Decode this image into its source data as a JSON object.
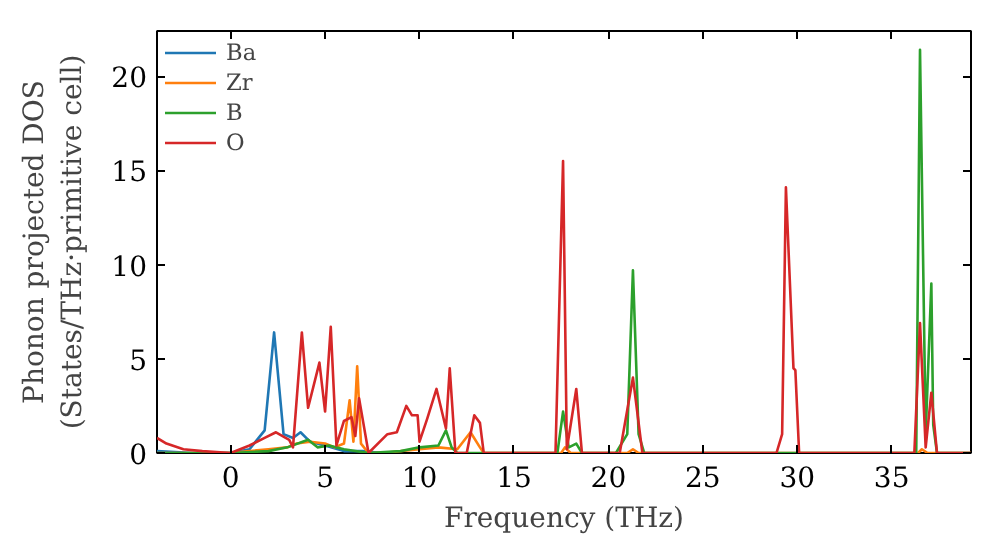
{
  "chart_data": {
    "type": "line",
    "xlabel": "Frequency (THz)",
    "ylabel": "Phonon projected DOS\n(States/THz·primitive cell)",
    "xlim": [
      -3.9,
      39.2
    ],
    "ylim": [
      0,
      22.4
    ],
    "xticks": [
      0,
      5,
      10,
      15,
      20,
      25,
      30,
      35
    ],
    "yticks": [
      0,
      5,
      10,
      15,
      20
    ],
    "grid": false,
    "legend": "top left",
    "series": [
      {
        "name": "Ba",
        "color": "#1f77b4",
        "x": [
          -3.9,
          -2,
          0,
          1,
          1.8,
          2.3,
          2.8,
          3.3,
          3.7,
          4.2,
          5,
          6,
          7,
          8
        ],
        "values": [
          0.1,
          0,
          0,
          0.2,
          1.2,
          6.4,
          1.0,
          0.8,
          1.1,
          0.6,
          0.4,
          0.1,
          0.1,
          0
        ]
      },
      {
        "name": "Zr",
        "color": "#ff7f0e",
        "x": [
          -3.9,
          0,
          1,
          2,
          3,
          3.5,
          4.2,
          5,
          5.5,
          6.0,
          6.3,
          6.5,
          6.7,
          6.9,
          7.3,
          8,
          10,
          11,
          12,
          12.7,
          13.2,
          13.4,
          17.5,
          17.7,
          18,
          21,
          21.3,
          21.6,
          36.4,
          36.6,
          36.9,
          39.2
        ],
        "values": [
          0,
          0,
          0.1,
          0.2,
          0.3,
          0.5,
          0.6,
          0.5,
          0.3,
          0.5,
          2.8,
          0.6,
          4.6,
          0.5,
          0,
          0,
          0.2,
          0.3,
          0.2,
          1.1,
          0.3,
          0,
          0,
          0.3,
          0,
          0,
          0.2,
          0,
          0,
          0.2,
          0,
          0
        ]
      },
      {
        "name": "B",
        "color": "#2ca02c",
        "x": [
          -3.9,
          0,
          2,
          3,
          4.1,
          4.6,
          5.2,
          6,
          7.3,
          9,
          10,
          11,
          11.4,
          11.7,
          12,
          17.3,
          17.6,
          17.9,
          18.3,
          18.6,
          20.4,
          21.0,
          21.3,
          21.6,
          21.9,
          36.3,
          36.5,
          36.8,
          37.1,
          37.2,
          37.4,
          39.2
        ],
        "values": [
          0,
          0,
          0.1,
          0.3,
          0.7,
          0.3,
          0.4,
          0.2,
          0,
          0.1,
          0.3,
          0.4,
          1.2,
          0.3,
          0,
          0,
          2.2,
          0.3,
          0.5,
          0,
          0,
          1.0,
          9.7,
          1.0,
          0,
          0,
          21.4,
          1.0,
          9.0,
          1.5,
          0,
          0
        ]
      },
      {
        "name": "O",
        "color": "#d62728",
        "x": [
          -3.9,
          -3.4,
          -2.5,
          -1.5,
          0,
          1,
          1.8,
          2.4,
          3.1,
          3.3,
          3.77,
          4.1,
          4.7,
          5.0,
          5.3,
          5.6,
          6.0,
          6.4,
          6.6,
          6.8,
          7.3,
          8.3,
          8.8,
          9.3,
          9.6,
          9.9,
          10.0,
          10.4,
          10.9,
          11.4,
          11.6,
          11.9,
          12.5,
          12.9,
          13.2,
          13.4,
          17.2,
          17.6,
          17.8,
          18.3,
          18.6,
          20.6,
          21.3,
          21.8,
          28.9,
          29.2,
          29.4,
          29.8,
          29.9,
          30.1,
          36.2,
          36.5,
          36.8,
          37.1,
          37.4,
          39.2
        ],
        "values": [
          0.8,
          0.5,
          0.2,
          0.1,
          0,
          0.4,
          0.8,
          1.1,
          0.7,
          0.3,
          6.4,
          2.4,
          4.8,
          2.2,
          6.7,
          0.4,
          1.7,
          1.9,
          0.9,
          2.9,
          0,
          1.0,
          1.1,
          2.5,
          2.0,
          2.0,
          0.6,
          1.8,
          3.4,
          1.3,
          4.5,
          0,
          0,
          2.0,
          1.6,
          0,
          0,
          15.5,
          0.2,
          3.4,
          0,
          0,
          4.0,
          0,
          0,
          1.0,
          14.1,
          4.5,
          4.4,
          0,
          0,
          6.9,
          0.3,
          3.2,
          0,
          0
        ]
      }
    ]
  }
}
